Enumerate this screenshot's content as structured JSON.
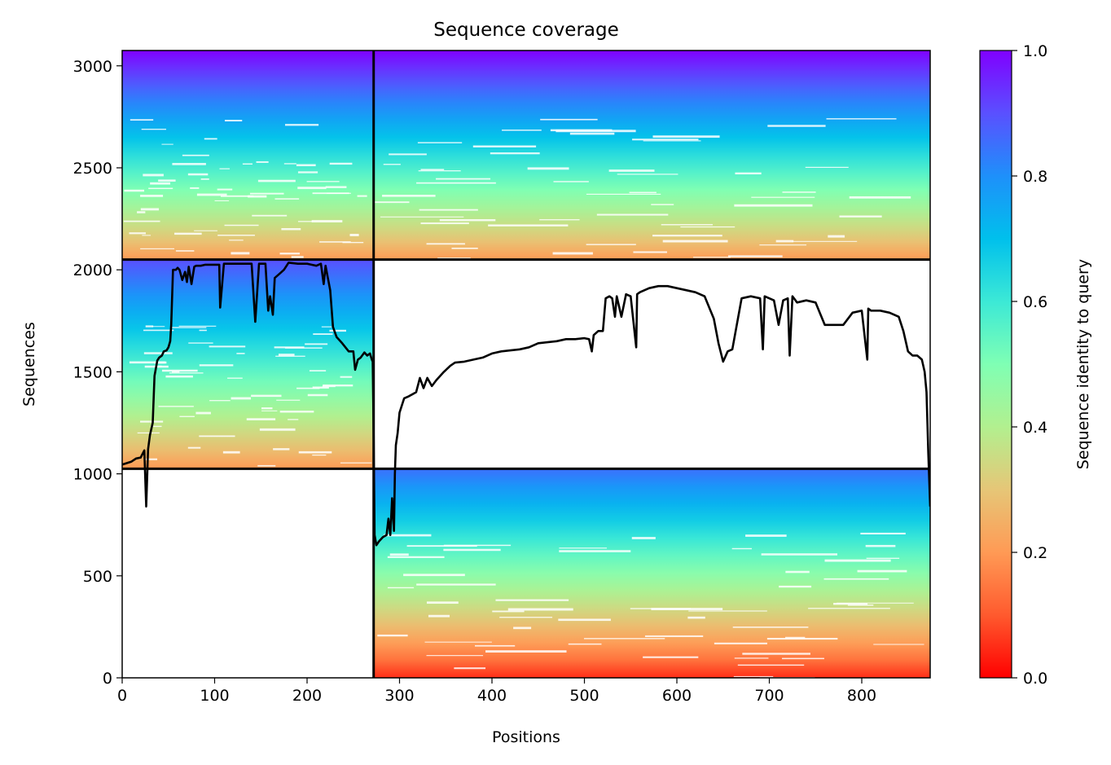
{
  "chart_data": {
    "type": "heatmap",
    "title": "Sequence coverage",
    "xlabel": "Positions",
    "ylabel": "Sequences",
    "xlim": [
      0,
      874
    ],
    "ylim": [
      0,
      3075
    ],
    "xticks": [
      0,
      100,
      200,
      300,
      400,
      500,
      600,
      700,
      800
    ],
    "yticks": [
      0,
      500,
      1000,
      1500,
      2000,
      2500,
      3000
    ],
    "colorbar": {
      "label": "Sequence identity to query",
      "range": [
        0,
        1
      ],
      "ticks": [
        "0.0",
        "0.2",
        "0.4",
        "0.6",
        "0.8",
        "1.0"
      ],
      "colormap": "rainbow_r"
    },
    "segment_boundaries": {
      "position": [
        272
      ],
      "sequence": [
        1025,
        2050
      ]
    },
    "blocks": [
      {
        "name": "block-top-left",
        "x": [
          0,
          272
        ],
        "y": [
          2050,
          3075
        ],
        "identity_top": 1.0,
        "identity_bottom": 0.2
      },
      {
        "name": "block-top-right",
        "x": [
          272,
          874
        ],
        "y": [
          2050,
          3075
        ],
        "identity_top": 1.0,
        "identity_bottom": 0.2
      },
      {
        "name": "block-middle-left",
        "x": [
          0,
          272
        ],
        "y": [
          1025,
          2050
        ],
        "identity_top": 0.9,
        "identity_bottom": 0.2
      },
      {
        "name": "block-bottom-right",
        "x": [
          272,
          874
        ],
        "y": [
          0,
          1025
        ],
        "identity_top": 0.85,
        "identity_bottom": 0.05
      }
    ],
    "coverage_line": {
      "x": [
        0,
        10,
        15,
        20,
        24,
        26,
        28,
        30,
        33,
        35,
        38,
        40,
        43,
        45,
        48,
        50,
        52,
        53,
        55,
        58,
        60,
        62,
        65,
        68,
        70,
        72,
        75,
        78,
        80,
        85,
        90,
        95,
        100,
        105,
        106,
        110,
        120,
        130,
        140,
        144,
        148,
        150,
        155,
        158,
        160,
        163,
        165,
        170,
        175,
        180,
        190,
        200,
        210,
        215,
        218,
        220,
        225,
        228,
        232,
        238,
        245,
        250,
        252,
        255,
        258,
        262,
        265,
        268,
        270,
        271,
        272,
        273,
        275,
        278,
        282,
        286,
        288,
        290,
        292,
        294,
        295,
        296,
        298,
        300,
        305,
        310,
        318,
        322,
        326,
        330,
        335,
        340,
        348,
        355,
        360,
        370,
        380,
        390,
        400,
        410,
        420,
        430,
        440,
        450,
        460,
        470,
        480,
        490,
        500,
        505,
        508,
        510,
        515,
        520,
        523,
        527,
        530,
        533,
        535,
        540,
        545,
        550,
        556,
        557,
        560,
        570,
        580,
        590,
        600,
        610,
        620,
        630,
        640,
        645,
        650,
        655,
        660,
        670,
        680,
        690,
        693,
        695,
        700,
        705,
        710,
        715,
        720,
        722,
        725,
        730,
        740,
        750,
        760,
        770,
        780,
        790,
        800,
        806,
        807,
        810,
        820,
        830,
        840,
        845,
        850,
        855,
        860,
        865,
        868,
        870,
        872,
        874
      ],
      "y": [
        1045,
        1060,
        1075,
        1080,
        1115,
        840,
        1120,
        1190,
        1250,
        1480,
        1555,
        1570,
        1580,
        1600,
        1605,
        1620,
        1650,
        1730,
        2000,
        2000,
        2010,
        2000,
        1950,
        1990,
        1940,
        2015,
        1930,
        2015,
        2020,
        2020,
        2025,
        2025,
        2025,
        2025,
        1815,
        2030,
        2030,
        2030,
        2030,
        1745,
        2030,
        2030,
        2030,
        1800,
        1870,
        1780,
        1960,
        1980,
        2000,
        2035,
        2030,
        2030,
        2020,
        2030,
        1930,
        2020,
        1900,
        1720,
        1670,
        1640,
        1600,
        1600,
        1510,
        1560,
        1570,
        1595,
        1580,
        1590,
        1560,
        1550,
        1200,
        700,
        650,
        670,
        690,
        700,
        780,
        700,
        880,
        720,
        1000,
        1140,
        1200,
        1300,
        1370,
        1380,
        1400,
        1470,
        1420,
        1470,
        1430,
        1460,
        1500,
        1530,
        1545,
        1550,
        1560,
        1570,
        1590,
        1600,
        1605,
        1610,
        1620,
        1640,
        1645,
        1650,
        1660,
        1660,
        1665,
        1660,
        1600,
        1680,
        1700,
        1700,
        1860,
        1870,
        1860,
        1770,
        1870,
        1770,
        1880,
        1870,
        1620,
        1880,
        1890,
        1910,
        1920,
        1920,
        1910,
        1900,
        1890,
        1870,
        1760,
        1640,
        1550,
        1600,
        1610,
        1860,
        1870,
        1860,
        1610,
        1870,
        1860,
        1850,
        1730,
        1850,
        1860,
        1580,
        1870,
        1840,
        1850,
        1840,
        1730,
        1730,
        1730,
        1790,
        1800,
        1560,
        1810,
        1800,
        1800,
        1790,
        1770,
        1700,
        1600,
        1580,
        1580,
        1560,
        1500,
        1400,
        1100,
        840
      ]
    }
  }
}
